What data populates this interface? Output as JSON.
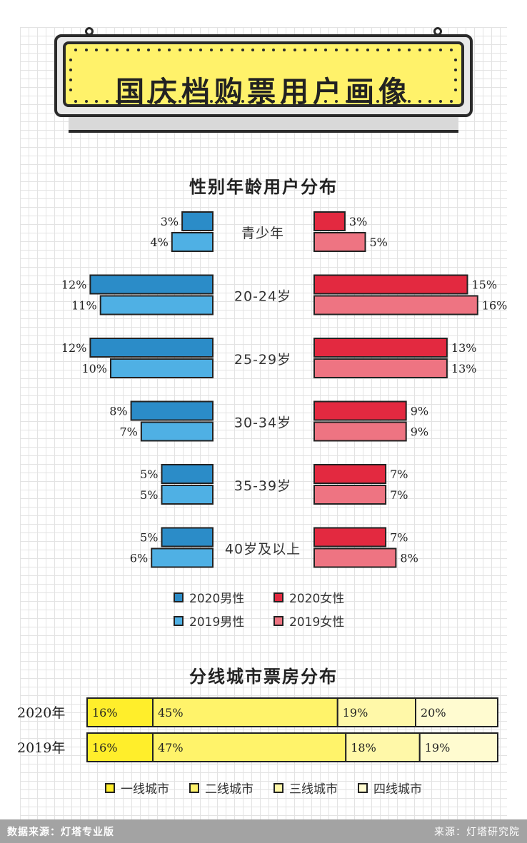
{
  "header": {
    "title": "国庆档购票用户画像"
  },
  "gender_age": {
    "title": "性别年龄用户分布",
    "legend": {
      "male_2020": "2020男性",
      "female_2020": "2020女性",
      "male_2019": "2019男性",
      "female_2019": "2019女性"
    }
  },
  "city_tier": {
    "title": "分线城市票房分布",
    "legend": {
      "tier1": "一线城市",
      "tier2": "二线城市",
      "tier3": "三线城市",
      "tier4": "四线城市"
    }
  },
  "footer": {
    "source_left": "数据来源：灯塔专业版",
    "source_right": "来源：灯塔研究院"
  },
  "colors": {
    "male_2020": "#2b8cc8",
    "male_2019": "#4fb0e4",
    "female_2020": "#e32940",
    "female_2019": "#ee7482",
    "tier1": "#ffee2b",
    "tier2": "#fff36a",
    "tier3": "#fff8a8",
    "tier4": "#fffbd0",
    "outline": "#222222"
  },
  "chart_data": [
    {
      "type": "bar",
      "title": "性别年龄用户分布",
      "categories": [
        "青少年",
        "20-24岁",
        "25-29岁",
        "30-34岁",
        "35-39岁",
        "40岁及以上"
      ],
      "series": [
        {
          "name": "2020男性",
          "values": [
            3,
            12,
            12,
            8,
            5,
            5
          ],
          "labels": [
            "3%",
            "12%",
            "12%",
            "8%",
            "5%",
            "5%"
          ]
        },
        {
          "name": "2019男性",
          "values": [
            4,
            11,
            10,
            7,
            5,
            6
          ],
          "labels": [
            "4%",
            "11%",
            "10%",
            "7%",
            "5%",
            "6%"
          ]
        },
        {
          "name": "2020女性",
          "values": [
            3,
            15,
            13,
            9,
            7,
            7
          ],
          "labels": [
            "3%",
            "15%",
            "13%",
            "9%",
            "7%",
            "7%"
          ]
        },
        {
          "name": "2019女性",
          "values": [
            5,
            16,
            13,
            9,
            7,
            8
          ],
          "labels": [
            "5%",
            "16%",
            "13%",
            "9%",
            "7%",
            "8%"
          ]
        }
      ]
    },
    {
      "type": "bar",
      "stacked": true,
      "orientation": "horizontal",
      "title": "分线城市票房分布",
      "categories": [
        "2020年",
        "2019年"
      ],
      "series": [
        {
          "name": "一线城市",
          "values": [
            16,
            16
          ],
          "labels": [
            "16%",
            "16%"
          ]
        },
        {
          "name": "二线城市",
          "values": [
            45,
            47
          ],
          "labels": [
            "45%",
            "47%"
          ]
        },
        {
          "name": "三线城市",
          "values": [
            19,
            18
          ],
          "labels": [
            "19%",
            "18%"
          ]
        },
        {
          "name": "四线城市",
          "values": [
            20,
            19
          ],
          "labels": [
            "20%",
            "19%"
          ]
        }
      ]
    }
  ]
}
